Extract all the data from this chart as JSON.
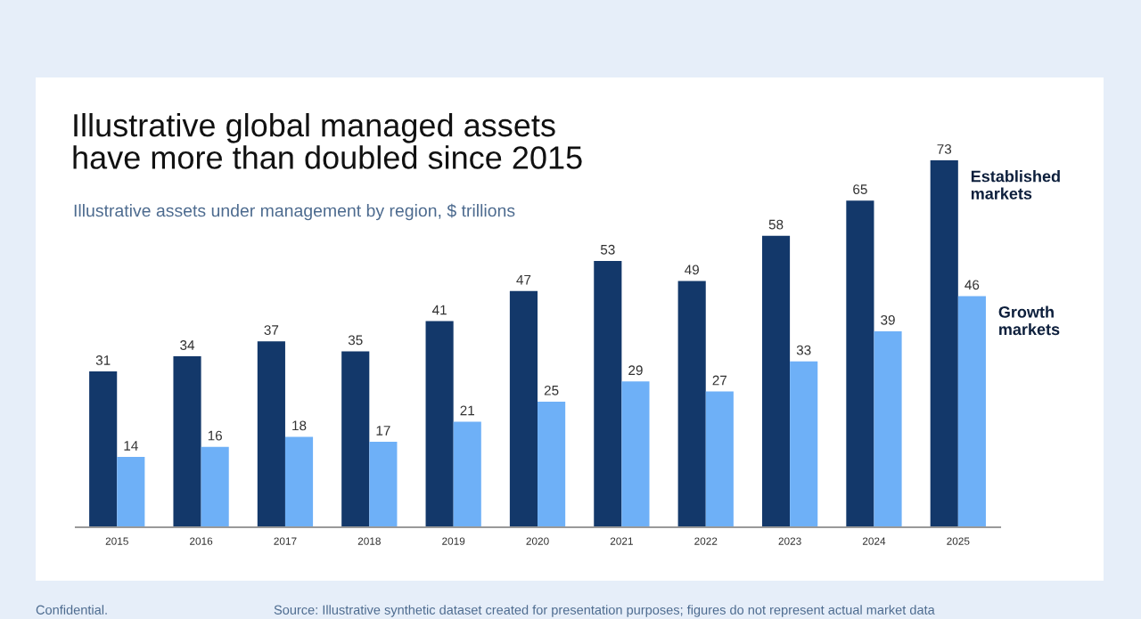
{
  "chart_data": {
    "type": "bar",
    "title": "Illustrative global managed assets\nhave more than doubled since 2015",
    "subtitle": "Illustrative assets under management by region, $ trillions",
    "categories": [
      "2015",
      "2016",
      "2017",
      "2018",
      "2019",
      "2020",
      "2021",
      "2022",
      "2023",
      "2024",
      "2025"
    ],
    "series": [
      {
        "name": "Established markets",
        "color": "#13386a",
        "values": [
          31,
          34,
          37,
          35,
          41,
          47,
          53,
          49,
          58,
          65,
          73
        ]
      },
      {
        "name": "Growth markets",
        "color": "#6eb0f7",
        "values": [
          14,
          16,
          18,
          17,
          21,
          25,
          29,
          27,
          33,
          39,
          46
        ]
      }
    ],
    "data_labels": true,
    "legend": false,
    "grid": false,
    "annotations": [
      "Confidential.",
      "Source: Illustrative synthetic dataset created for presentation purposes; figures do not represent actual market data"
    ]
  }
}
